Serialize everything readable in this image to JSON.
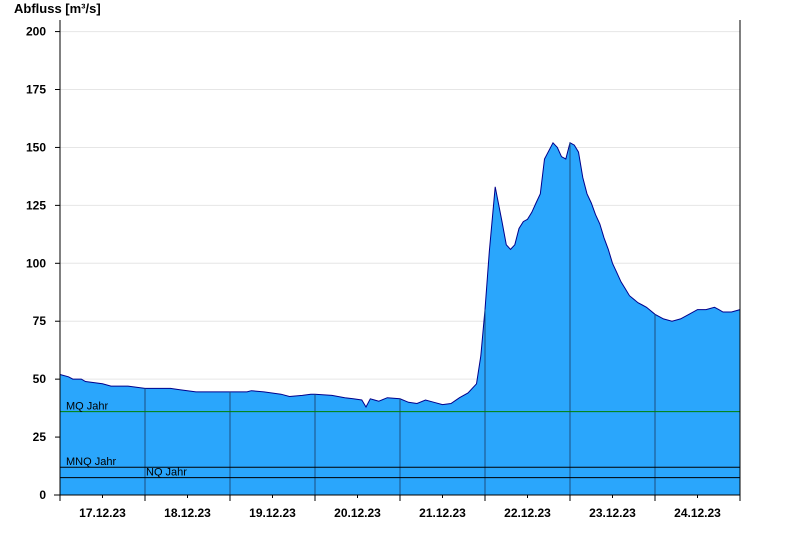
{
  "chart_data": {
    "type": "area",
    "ylabel": "Abfluss [m³/s]",
    "xlabel": "",
    "title": "",
    "ylim": [
      0,
      205
    ],
    "yticks": [
      0,
      25,
      50,
      75,
      100,
      125,
      150,
      175,
      200
    ],
    "x_tick_labels": [
      "17.12.23",
      "18.12.23",
      "19.12.23",
      "20.12.23",
      "21.12.23",
      "22.12.23",
      "23.12.23",
      "24.12.23"
    ],
    "x_unit": "days since 17.12.23 00:00",
    "x_range": [
      0,
      8
    ],
    "grid": "horizontal",
    "colors": {
      "fill": "#2aa6fc",
      "line": "#00008b",
      "mq": "#008000",
      "ref": "#000000"
    },
    "reference_lines": [
      {
        "label": "MQ Jahr",
        "value": 36,
        "color": "#008000"
      },
      {
        "label": "MNQ Jahr",
        "value": 12,
        "color": "#000000"
      },
      {
        "label": "NQ Jahr",
        "value": 7.5,
        "color": "#000000"
      }
    ],
    "series": [
      {
        "x": [
          0,
          0.1,
          0.15,
          0.25,
          0.3,
          0.5,
          0.6,
          0.8,
          1.0,
          1.1,
          1.3,
          1.4,
          1.5,
          1.6,
          1.8,
          2.0,
          2.2,
          2.25,
          2.4,
          2.6,
          2.7,
          2.85,
          2.95,
          3.0,
          3.2,
          3.35,
          3.45,
          3.55,
          3.6,
          3.65,
          3.7,
          3.75,
          3.85,
          4.0,
          4.1,
          4.2,
          4.3,
          4.4,
          4.5,
          4.6,
          4.7,
          4.8,
          4.9,
          4.95,
          5.0,
          5.05,
          5.12,
          5.2,
          5.25,
          5.3,
          5.35,
          5.4,
          5.45,
          5.5,
          5.55,
          5.6,
          5.65,
          5.7,
          5.8,
          5.85,
          5.9,
          5.95,
          6.0,
          6.05,
          6.1,
          6.15,
          6.2,
          6.25,
          6.3,
          6.35,
          6.4,
          6.45,
          6.5,
          6.55,
          6.6,
          6.65,
          6.7,
          6.8,
          6.85,
          6.9,
          7.0,
          7.1,
          7.2,
          7.3,
          7.4,
          7.5,
          7.6,
          7.7,
          7.75,
          7.8,
          7.85,
          7.9,
          8.0
        ],
        "y": [
          52,
          51,
          50,
          50,
          49,
          48,
          47,
          47,
          46,
          46,
          46,
          45.5,
          45,
          44.5,
          44.5,
          44.5,
          44.5,
          45,
          44.5,
          43.5,
          42.5,
          43,
          43.5,
          43.5,
          43,
          42,
          41.5,
          41,
          38,
          41.5,
          41,
          40.5,
          42,
          41.5,
          40,
          39.5,
          41,
          40,
          39,
          39.5,
          42,
          44,
          48,
          60,
          80,
          105,
          133,
          118,
          108,
          106,
          108,
          115,
          118,
          119,
          122,
          126,
          130,
          145,
          152,
          150,
          146,
          145,
          152,
          151,
          148,
          137,
          130,
          126,
          121,
          117,
          111,
          106,
          100,
          96,
          92,
          89,
          86,
          83,
          82,
          81,
          78,
          76,
          75,
          76,
          78,
          80,
          80,
          81,
          80,
          79,
          79,
          79,
          80
        ]
      }
    ]
  }
}
